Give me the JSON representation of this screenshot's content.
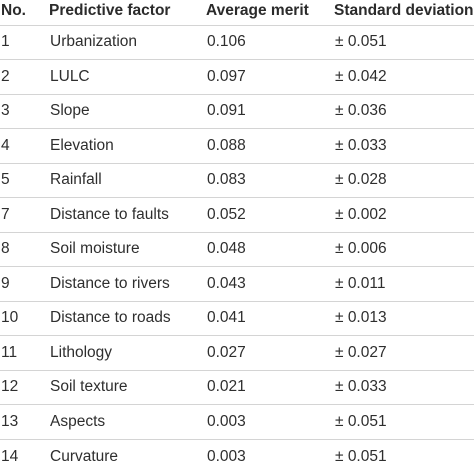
{
  "table": {
    "headers": {
      "no": "No.",
      "factor": "Predictive factor",
      "merit": "Average merit",
      "sd": "Standard deviation"
    },
    "rows": [
      {
        "no": "1",
        "factor": "Urbanization",
        "merit": "0.106",
        "sd": "± 0.051"
      },
      {
        "no": "2",
        "factor": "LULC",
        "merit": "0.097",
        "sd": "± 0.042"
      },
      {
        "no": "3",
        "factor": "Slope",
        "merit": "0.091",
        "sd": "± 0.036"
      },
      {
        "no": "4",
        "factor": "Elevation",
        "merit": "0.088",
        "sd": "± 0.033"
      },
      {
        "no": "5",
        "factor": "Rainfall",
        "merit": "0.083",
        "sd": "± 0.028"
      },
      {
        "no": "7",
        "factor": "Distance to faults",
        "merit": "0.052",
        "sd": "± 0.002"
      },
      {
        "no": "8",
        "factor": "Soil moisture",
        "merit": "0.048",
        "sd": "± 0.006"
      },
      {
        "no": "9",
        "factor": "Distance to rivers",
        "merit": "0.043",
        "sd": "± 0.011"
      },
      {
        "no": "10",
        "factor": "Distance to roads",
        "merit": "0.041",
        "sd": "± 0.013"
      },
      {
        "no": "11",
        "factor": "Lithology",
        "merit": "0.027",
        "sd": "± 0.027"
      },
      {
        "no": "12",
        "factor": "Soil texture",
        "merit": "0.021",
        "sd": "± 0.033"
      },
      {
        "no": "13",
        "factor": "Aspects",
        "merit": "0.003",
        "sd": "± 0.051"
      },
      {
        "no": "14",
        "factor": "Curvature",
        "merit": "0.003",
        "sd": "± 0.051"
      }
    ]
  }
}
